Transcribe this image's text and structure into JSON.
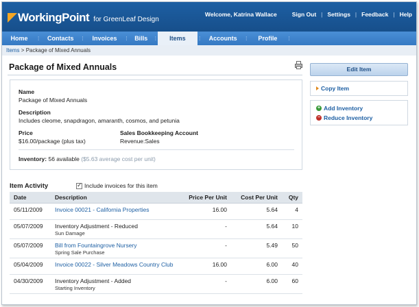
{
  "header": {
    "logo_text": "WorkingPoint",
    "logo_sub": "for GreenLeaf Design",
    "welcome": "Welcome, Katrina Wallace",
    "links": [
      "Sign Out",
      "Settings",
      "Feedback",
      "Help"
    ]
  },
  "tabs": [
    {
      "label": "Home",
      "active": false
    },
    {
      "label": "Contacts",
      "active": false
    },
    {
      "label": "Invoices",
      "active": false
    },
    {
      "label": "Bills",
      "active": false
    },
    {
      "label": "Items",
      "active": true
    },
    {
      "label": "Accounts",
      "active": false
    },
    {
      "label": "Profile",
      "active": false
    }
  ],
  "breadcrumb": {
    "root": "Items",
    "separator": ">",
    "current": "Package of Mixed Annuals"
  },
  "page_title": "Package of Mixed Annuals",
  "details": {
    "name_label": "Name",
    "name_value": "Package of Mixed Annuals",
    "description_label": "Description",
    "description_value": "Includes cleome, snapdragon, amaranth, cosmos, and petunia",
    "price_label": "Price",
    "price_value": "$16.00/package (plus tax)",
    "sales_account_label": "Sales Bookkeeping Account",
    "sales_account_value": "Revenue:Sales",
    "inventory_label": "Inventory:",
    "inventory_value": "56 available",
    "inventory_note": "($5.63 average cost per unit)"
  },
  "actions": {
    "edit_item": "Edit Item",
    "copy_item": "Copy Item",
    "add_inventory": "Add Inventory",
    "reduce_inventory": "Reduce Inventory"
  },
  "activity": {
    "title": "Item Activity",
    "include_invoices_label": "Include invoices for this item",
    "include_invoices_checked": true,
    "columns": [
      "Date",
      "Description",
      "Price Per Unit",
      "Cost Per Unit",
      "Qty"
    ],
    "rows": [
      {
        "date": "05/11/2009",
        "description": "Invoice 00021 - California Properties",
        "is_link": true,
        "note": "",
        "price": "16.00",
        "cost": "5.64",
        "qty": "4"
      },
      {
        "date": "05/07/2009",
        "description": "Inventory Adjustment - Reduced",
        "is_link": false,
        "note": "Sun Damage",
        "price": "-",
        "cost": "5.64",
        "qty": "10"
      },
      {
        "date": "05/07/2009",
        "description": "Bill from Fountaingrove Nursery",
        "is_link": true,
        "note": "Spring Sale Purchase",
        "price": "-",
        "cost": "5.49",
        "qty": "50"
      },
      {
        "date": "05/04/2009",
        "description": "Invoice 00022 - Silver Meadows Country Club",
        "is_link": true,
        "note": "",
        "price": "16.00",
        "cost": "6.00",
        "qty": "40"
      },
      {
        "date": "04/30/2009",
        "description": "Inventory Adjustment - Added",
        "is_link": false,
        "note": "Starting Inventory",
        "price": "-",
        "cost": "6.00",
        "qty": "60"
      }
    ]
  },
  "colors": {
    "header_blue": "#1d5fa3",
    "tab_blue": "#3f84cc",
    "link_blue": "#1d5fa3",
    "accent_orange": "#e08a1e",
    "add_green": "#3a9a3a",
    "reduce_red": "#c0302a"
  },
  "icons": {
    "logo": "logo-triangle-icon",
    "print": "print-icon",
    "copy": "arrow-right-icon",
    "add": "plus-circle-icon",
    "reduce": "minus-circle-icon",
    "checkbox": "checkbox-checked-icon"
  }
}
